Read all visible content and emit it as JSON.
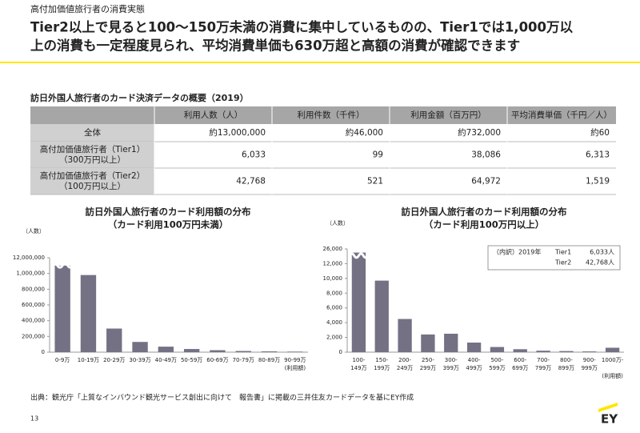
{
  "header": {
    "section": "高付加価値旅行者の消費実態",
    "headline": [
      "Tier2以上で見ると100～150万未満の消費に集中しているものの、Tier1では1,000万以",
      "上の消費も一定程度見られ、平均消費単価も630万超と高額の消費が確認できます"
    ]
  },
  "table": {
    "title": "訪日外国人旅行者のカード決済データの概要（2019）",
    "columns": [
      "利用人数（人）",
      "利用件数（千件）",
      "利用金額（百万円）",
      "平均消費単価（千円／人）"
    ],
    "rows": [
      {
        "label": [
          "全体"
        ],
        "cells": [
          "約13,000,000",
          "約46,000",
          "約732,000",
          "約60"
        ]
      },
      {
        "label": [
          "高付加価値旅行者（Tier1）",
          "（300万円以上）"
        ],
        "cells": [
          "6,033",
          "99",
          "38,086",
          "6,313"
        ]
      },
      {
        "label": [
          "高付加価値旅行者（Tier2）",
          "（100万円以上）"
        ],
        "cells": [
          "42,768",
          "521",
          "64,972",
          "1,519"
        ]
      }
    ]
  },
  "chart_data": [
    {
      "type": "bar",
      "title": [
        "訪日外国人旅行者のカード利用額の分布",
        "（カード利用100万円未満）"
      ],
      "y_label": "（人数）",
      "x_label": "(利用額)",
      "color": "#757184",
      "categories": [
        "0-9万",
        "10-19万",
        "20-29万",
        "30-39万",
        "40-49万",
        "50-59万",
        "60-69万",
        "70-79万",
        "80-89万",
        "90-99万"
      ],
      "values": [
        11900000,
        980000,
        300000,
        130000,
        70000,
        40000,
        25000,
        15000,
        10000,
        7000
      ],
      "ylim": [
        0,
        12000000
      ],
      "axis_break": {
        "from": 1000000,
        "to": 11800000
      },
      "yticks": [
        0,
        {
          "value": 200000,
          "label": "200,000"
        },
        {
          "value": 400000,
          "label": "400,000"
        },
        {
          "value": 600000,
          "label": "600,000"
        },
        {
          "value": 800000,
          "label": "800,000"
        },
        {
          "value": 1000000,
          "label": "1,000,000"
        },
        {
          "value": 12000000,
          "label": "12,000,000"
        }
      ]
    },
    {
      "type": "bar",
      "title": [
        "訪日外国人旅行者のカード利用額の分布",
        "（カード利用100万円以上）"
      ],
      "y_label": "（人数）",
      "x_label": "(利用額)",
      "color": "#757184",
      "categories": [
        "100-149万",
        "150-199万",
        "200-249万",
        "250-299万",
        "300-399万",
        "400-499万",
        "500-599万",
        "600-699万",
        "700-799万",
        "800-899万",
        "900-999万",
        "1000万-"
      ],
      "values": [
        25500,
        9700,
        4500,
        2400,
        2500,
        1300,
        700,
        400,
        200,
        150,
        100,
        600
      ],
      "ylim": [
        0,
        26000
      ],
      "axis_break": {
        "from": 12000,
        "to": 24000
      },
      "yticks": [
        0,
        {
          "value": 2000,
          "label": "2,000"
        },
        {
          "value": 4000,
          "label": "4,000"
        },
        {
          "value": 6000,
          "label": "6,000"
        },
        {
          "value": 8000,
          "label": "8,000"
        },
        {
          "value": 10000,
          "label": "10,000"
        },
        {
          "value": 12000,
          "label": "12,000"
        },
        {
          "value": 26000,
          "label": "26,000"
        }
      ],
      "annotation": {
        "heading": "（内訳）2019年",
        "items": [
          {
            "name": "Tier1",
            "value": "6,033人"
          },
          {
            "name": "Tier2",
            "value": "42,768人"
          }
        ]
      }
    }
  ],
  "footer": {
    "source": "出典：観光庁「上質なインバウンド観光サービス創出に向けて　報告書」に掲載の三井住友カードデータを基にEY作成",
    "page": "13",
    "logo": "EY"
  }
}
